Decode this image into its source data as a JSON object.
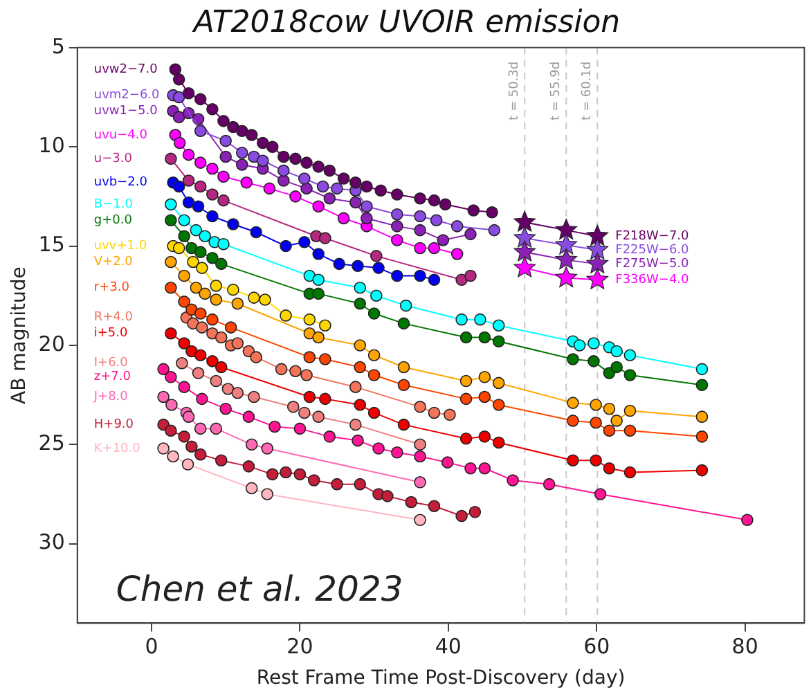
{
  "chart_data": {
    "type": "line",
    "title": "AT2018cow UVOIR emission",
    "xlabel": "Rest Frame Time Post-Discovery (day)",
    "ylabel": "AB magnitude",
    "xlim": [
      -10,
      88
    ],
    "xticks": [
      0,
      20,
      40,
      60,
      80
    ],
    "ylim": [
      34,
      5
    ],
    "yticks": [
      5,
      10,
      15,
      20,
      25,
      30
    ],
    "grid": false,
    "legend": "top left",
    "marker": "circle",
    "line_style": "solid",
    "annotations": [
      "Chen et al. 2023"
    ],
    "ref_lines": [
      {
        "axis": "x",
        "value": 50.3,
        "label": "t = 50.3d",
        "color": "#c8c8c8",
        "line_style": "dashed"
      },
      {
        "axis": "x",
        "value": 55.9,
        "label": "t = 55.9d",
        "color": "#c8c8c8",
        "line_style": "dashed"
      },
      {
        "axis": "x",
        "value": 60.1,
        "label": "t = 60.1d",
        "color": "#c8c8c8",
        "line_style": "dashed"
      }
    ],
    "series": [
      {
        "name": "uvw2−7.0",
        "color": "#660066",
        "x": [
          3.2,
          3.7,
          5.0,
          6.6,
          8.2,
          9.7,
          11.0,
          12.2,
          13.5,
          15.0,
          16.3,
          17.8,
          19.4,
          20.9,
          22.5,
          24.0,
          25.9,
          27.5,
          29.0,
          30.9,
          33.1,
          36.2,
          38.1,
          39.6,
          43.4,
          45.9
        ],
        "values": [
          6.1,
          6.6,
          7.3,
          7.6,
          8.1,
          8.7,
          9.0,
          9.2,
          9.4,
          9.8,
          10.0,
          10.5,
          10.6,
          10.8,
          11.0,
          11.2,
          11.6,
          11.8,
          12.0,
          12.2,
          12.4,
          12.6,
          12.7,
          12.9,
          13.2,
          13.3
        ]
      },
      {
        "name": "uvm2−6.0",
        "color": "#8a4be0",
        "x": [
          2.9,
          3.7,
          6.6,
          10.0,
          12.2,
          13.8,
          15.0,
          17.8,
          20.6,
          23.1,
          25.0,
          27.5,
          29.0,
          33.1,
          36.2,
          38.4,
          41.2,
          46.2
        ],
        "values": [
          7.4,
          7.5,
          9.2,
          9.7,
          10.3,
          10.5,
          10.7,
          11.2,
          11.6,
          12.0,
          12.1,
          12.2,
          13.0,
          13.4,
          13.5,
          13.7,
          14.0,
          14.2
        ]
      },
      {
        "name": "uvw1−5.0",
        "color": "#8b22b5",
        "x": [
          2.9,
          3.7,
          5.0,
          6.3,
          10.0,
          12.2,
          15.0,
          17.8,
          20.9,
          24.0,
          27.5,
          29.0,
          33.1,
          36.2,
          39.3,
          43.0
        ],
        "values": [
          8.2,
          8.5,
          8.3,
          8.6,
          10.5,
          10.9,
          11.1,
          11.7,
          12.1,
          12.6,
          12.8,
          13.6,
          14.0,
          14.2,
          14.7,
          14.4
        ]
      },
      {
        "name": "uvu−4.0",
        "color": "#ff00ff",
        "x": [
          3.2,
          3.8,
          5.0,
          6.6,
          8.2,
          9.7,
          12.8,
          15.9,
          19.4,
          22.5,
          25.9,
          29.0,
          33.1,
          36.2,
          38.1,
          41.2
        ],
        "values": [
          9.4,
          9.8,
          10.4,
          10.8,
          11.1,
          11.5,
          11.8,
          12.1,
          12.5,
          13.0,
          13.6,
          14.0,
          14.7,
          15.1,
          15.1,
          15.4
        ]
      },
      {
        "name": "u−3.0",
        "color": "#b5287f",
        "x": [
          2.6,
          5.0,
          6.6,
          8.2,
          9.7,
          22.2,
          23.4,
          30.3,
          41.8,
          43.0
        ],
        "values": [
          10.6,
          11.7,
          12.0,
          12.4,
          12.7,
          14.5,
          14.6,
          15.5,
          16.7,
          16.5
        ]
      },
      {
        "name": "uvb−2.0",
        "color": "#0000ee",
        "x": [
          2.9,
          3.7,
          5.0,
          6.3,
          8.2,
          11.0,
          14.1,
          18.1,
          20.6,
          22.5,
          25.3,
          27.8,
          30.6,
          33.1,
          36.2,
          38.1
        ],
        "values": [
          11.8,
          12.0,
          12.8,
          13.0,
          13.5,
          13.9,
          14.3,
          15.0,
          14.8,
          15.4,
          15.9,
          16.0,
          16.1,
          16.5,
          16.5,
          16.7
        ]
      },
      {
        "name": "B−1.0",
        "color": "#00ffff",
        "x": [
          2.6,
          4.4,
          6.0,
          7.2,
          8.5,
          9.7,
          21.3,
          22.5,
          28.1,
          30.3,
          34.3,
          41.8,
          44.3,
          46.8,
          56.8,
          57.7,
          59.6,
          61.7,
          62.7,
          64.5,
          74.2
        ],
        "values": [
          12.9,
          13.7,
          14.2,
          14.5,
          14.8,
          14.9,
          16.5,
          16.7,
          17.1,
          17.5,
          18.0,
          18.7,
          18.7,
          19.0,
          19.8,
          20.0,
          19.9,
          20.1,
          20.3,
          20.5,
          21.2
        ]
      },
      {
        "name": "g+0.0",
        "color": "#007700",
        "x": [
          2.6,
          4.4,
          5.4,
          6.6,
          8.2,
          9.4,
          21.3,
          22.5,
          28.1,
          30.0,
          34.0,
          42.4,
          44.9,
          46.8,
          56.8,
          59.6,
          61.7,
          62.7,
          64.5,
          74.2
        ],
        "values": [
          13.7,
          14.5,
          15.1,
          15.3,
          15.6,
          15.9,
          17.4,
          17.4,
          17.9,
          18.4,
          18.9,
          19.6,
          19.6,
          19.8,
          20.7,
          20.8,
          21.4,
          21.1,
          21.5,
          22.0
        ]
      },
      {
        "name": "uvv+1.0",
        "color": "#ffd700",
        "x": [
          2.9,
          3.7,
          5.6,
          6.8,
          8.7,
          11.0,
          13.8,
          15.3,
          18.1,
          21.3,
          23.4
        ],
        "values": [
          15.0,
          15.1,
          15.8,
          16.1,
          17.0,
          17.2,
          17.6,
          17.7,
          18.5,
          18.7,
          19.0
        ]
      },
      {
        "name": "V+2.0",
        "color": "#ffa500",
        "x": [
          2.6,
          4.4,
          6.0,
          7.2,
          8.7,
          11.6,
          21.3,
          22.5,
          28.1,
          30.0,
          34.0,
          42.4,
          44.9,
          46.8,
          56.8,
          59.9,
          61.7,
          62.7,
          64.5,
          74.2
        ],
        "values": [
          15.8,
          16.5,
          17.1,
          17.4,
          17.7,
          17.9,
          19.4,
          19.6,
          20.0,
          20.5,
          21.1,
          21.8,
          21.6,
          21.9,
          22.9,
          23.0,
          23.2,
          23.8,
          23.3,
          23.6
        ]
      },
      {
        "name": "r+3.0",
        "color": "#ff4500",
        "x": [
          2.6,
          4.4,
          5.4,
          6.6,
          8.2,
          10.7,
          21.3,
          23.4,
          28.1,
          30.0,
          34.0,
          42.4,
          44.9,
          46.8,
          56.8,
          59.9,
          61.7,
          64.5,
          74.2
        ],
        "values": [
          17.1,
          17.8,
          18.2,
          18.4,
          18.7,
          19.1,
          20.6,
          20.7,
          21.1,
          21.5,
          22.0,
          22.7,
          22.6,
          23.0,
          23.8,
          23.9,
          24.3,
          24.3,
          24.6
        ]
      },
      {
        "name": "R+4.0",
        "color": "#f4745a",
        "x": [
          4.7,
          5.6,
          6.8,
          8.2,
          9.4,
          10.7,
          11.6,
          13.1,
          14.1,
          17.5,
          19.4,
          20.9,
          27.5,
          36.2,
          38.1,
          40.2
        ],
        "values": [
          18.6,
          18.9,
          19.1,
          19.4,
          19.6,
          20.0,
          19.9,
          20.3,
          20.6,
          21.2,
          21.3,
          21.5,
          22.1,
          23.1,
          23.4,
          23.5
        ]
      },
      {
        "name": "i+5.0",
        "color": "#ee0000",
        "x": [
          2.6,
          4.4,
          5.4,
          6.6,
          8.2,
          9.4,
          21.3,
          23.4,
          28.1,
          30.0,
          34.0,
          42.4,
          44.9,
          46.8,
          56.8,
          59.9,
          61.7,
          64.5,
          74.2
        ],
        "values": [
          19.4,
          19.9,
          20.3,
          20.5,
          20.8,
          21.1,
          22.6,
          22.7,
          23.0,
          23.4,
          24.0,
          24.7,
          24.6,
          24.9,
          25.8,
          25.8,
          26.2,
          26.4,
          26.3
        ]
      },
      {
        "name": "I+6.0",
        "color": "#f08080",
        "x": [
          4.1,
          6.3,
          8.7,
          10.3,
          11.6,
          13.8,
          19.1,
          20.6,
          22.5,
          27.5,
          36.2
        ],
        "values": [
          20.9,
          21.4,
          21.8,
          22.2,
          22.4,
          22.6,
          23.1,
          23.4,
          23.6,
          24.0,
          25.0
        ]
      },
      {
        "name": "z+7.0",
        "color": "#ff1493",
        "x": [
          1.6,
          2.6,
          4.4,
          6.8,
          10.0,
          13.1,
          16.6,
          20.0,
          24.0,
          27.8,
          30.6,
          33.1,
          36.2,
          39.9,
          43.0,
          44.9,
          48.7,
          53.6,
          60.5,
          80.3
        ],
        "values": [
          21.2,
          21.6,
          22.1,
          22.7,
          23.2,
          23.6,
          24.1,
          24.2,
          24.6,
          24.8,
          25.2,
          25.4,
          25.6,
          25.9,
          26.2,
          26.2,
          26.8,
          27.0,
          27.5,
          28.8
        ]
      },
      {
        "name": "J+8.0",
        "color": "#ff69b4",
        "x": [
          1.6,
          2.7,
          4.7,
          5.0,
          6.6,
          8.7,
          13.5,
          15.6,
          36.2
        ],
        "values": [
          22.6,
          23.0,
          23.4,
          23.6,
          24.2,
          24.2,
          25.0,
          25.2,
          26.9
        ]
      },
      {
        "name": "H+9.0",
        "color": "#c41e3a",
        "x": [
          1.6,
          2.6,
          4.4,
          5.4,
          6.6,
          9.4,
          13.1,
          16.3,
          18.1,
          20.0,
          21.9,
          25.0,
          28.1,
          30.6,
          31.8,
          35.0,
          38.1,
          41.8,
          43.6
        ],
        "values": [
          24.0,
          24.3,
          24.6,
          25.1,
          25.5,
          25.8,
          26.1,
          26.5,
          26.4,
          26.5,
          26.8,
          27.0,
          27.0,
          27.5,
          27.6,
          27.9,
          28.1,
          28.6,
          28.4
        ]
      },
      {
        "name": "K+10.0",
        "color": "#ffb6c1",
        "x": [
          1.6,
          2.9,
          4.9,
          13.5,
          15.6,
          36.2
        ],
        "values": [
          25.2,
          25.6,
          26.0,
          27.2,
          27.5,
          28.8
        ]
      },
      {
        "name": "F218W−7.0",
        "color": "#660066",
        "marker": "star",
        "x": [
          50.3,
          55.9,
          60.1
        ],
        "values": [
          13.8,
          14.2,
          14.5
        ]
      },
      {
        "name": "F225W−6.0",
        "color": "#8a4be0",
        "marker": "star",
        "x": [
          50.3,
          55.9,
          60.1
        ],
        "values": [
          14.6,
          14.95,
          15.2
        ]
      },
      {
        "name": "F275W−5.0",
        "color": "#8b22b5",
        "marker": "star",
        "x": [
          50.3,
          55.9,
          60.1
        ],
        "values": [
          15.3,
          15.7,
          15.9
        ]
      },
      {
        "name": "F336W−4.0",
        "color": "#ff00ff",
        "marker": "star",
        "x": [
          50.3,
          55.9,
          60.1
        ],
        "values": [
          16.1,
          16.6,
          16.7
        ]
      }
    ]
  }
}
